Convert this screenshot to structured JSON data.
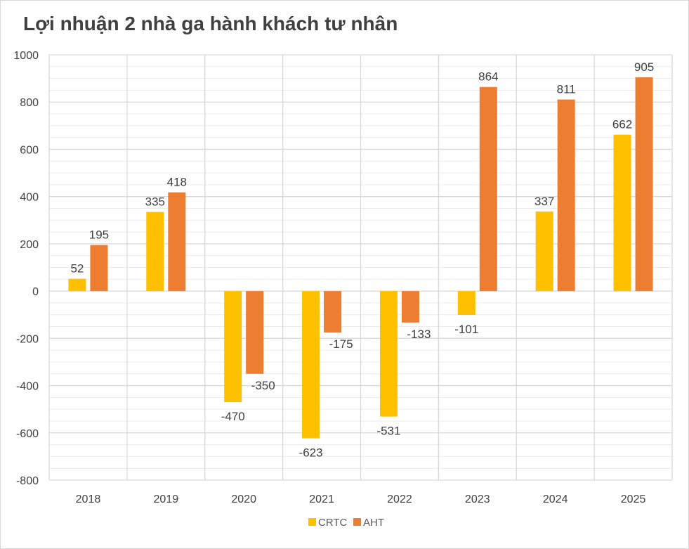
{
  "chart_data": {
    "type": "bar",
    "title": "Lợi nhuận 2 nhà ga hành khách tư nhân",
    "xlabel": "",
    "ylabel": "",
    "categories": [
      "2018",
      "2019",
      "2020",
      "2021",
      "2022",
      "2023",
      "2024",
      "2025"
    ],
    "series": [
      {
        "name": "CRTC",
        "color": "#FFC000",
        "values": [
          52,
          335,
          -470,
          -623,
          -531,
          -101,
          337,
          662
        ]
      },
      {
        "name": "AHT",
        "color": "#ED7D31",
        "values": [
          195,
          418,
          -350,
          -175,
          -133,
          864,
          811,
          905
        ]
      }
    ],
    "ylim": [
      -800,
      1000
    ],
    "yticks": [
      -800,
      -600,
      -400,
      -200,
      0,
      200,
      400,
      600,
      800,
      1000
    ],
    "grid": true,
    "legend_position": "bottom"
  }
}
